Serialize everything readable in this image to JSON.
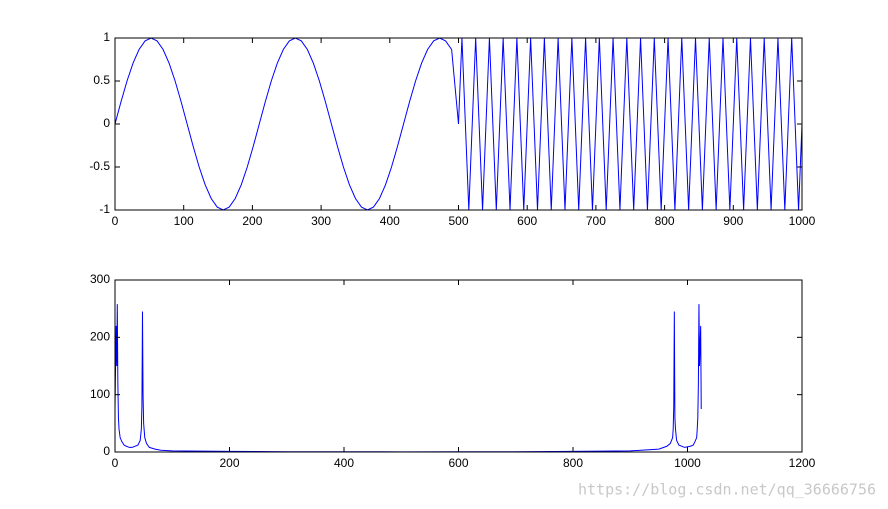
{
  "chart_data": [
    {
      "type": "line",
      "xlim": [
        0,
        1000
      ],
      "ylim": [
        -1,
        1
      ],
      "xticks": [
        0,
        100,
        200,
        300,
        400,
        500,
        600,
        700,
        800,
        900,
        1000
      ],
      "yticks": [
        -1,
        -0.5,
        0,
        0.5,
        1
      ],
      "x": [
        0,
        8.75,
        17.5,
        26.25,
        35,
        43.75,
        52.5,
        61.25,
        70,
        78.75,
        87.5,
        96.25,
        105,
        113.75,
        122.5,
        131.25,
        140,
        148.75,
        157.5,
        166.25,
        175,
        183.75,
        192.5,
        201.25,
        210,
        218.75,
        227.5,
        236.25,
        245,
        253.75,
        262.5,
        271.25,
        280,
        288.75,
        297.5,
        306.25,
        315,
        323.75,
        332.5,
        341.25,
        350,
        358.75,
        367.5,
        376.25,
        385,
        393.75,
        402.5,
        411.25,
        420,
        428.75,
        437.5,
        446.25,
        455,
        463.75,
        472.5,
        481.25,
        490,
        500,
        505,
        510,
        515,
        520,
        525,
        530,
        535,
        540,
        545,
        550,
        555,
        560,
        565,
        570,
        575,
        580,
        585,
        590,
        595,
        600,
        605,
        610,
        615,
        620,
        625,
        630,
        635,
        640,
        645,
        650,
        655,
        660,
        665,
        670,
        675,
        680,
        685,
        690,
        695,
        700,
        705,
        710,
        715,
        720,
        725,
        730,
        735,
        740,
        745,
        750,
        755,
        760,
        765,
        770,
        775,
        780,
        785,
        790,
        795,
        800,
        805,
        810,
        815,
        820,
        825,
        830,
        835,
        840,
        845,
        850,
        855,
        860,
        865,
        870,
        875,
        880,
        885,
        890,
        895,
        900,
        905,
        910,
        915,
        920,
        925,
        930,
        935,
        940,
        945,
        950,
        955,
        960,
        965,
        970,
        975,
        980,
        985,
        990,
        995,
        1000
      ],
      "series": [
        {
          "color": "#0000ff",
          "values": [
            0,
            0.259,
            0.5,
            0.707,
            0.866,
            0.966,
            1,
            0.966,
            0.866,
            0.707,
            0.5,
            0.259,
            0,
            -0.259,
            -0.5,
            -0.707,
            -0.866,
            -0.966,
            -1,
            -0.966,
            -0.866,
            -0.707,
            -0.5,
            -0.259,
            0,
            0.259,
            0.5,
            0.707,
            0.866,
            0.966,
            1,
            0.966,
            0.866,
            0.707,
            0.5,
            0.259,
            0,
            -0.259,
            -0.5,
            -0.707,
            -0.866,
            -0.966,
            -1,
            -0.966,
            -0.866,
            -0.707,
            -0.5,
            -0.259,
            0,
            0.259,
            0.5,
            0.707,
            0.866,
            0.966,
            1,
            0.966,
            0.866,
            0,
            1,
            0,
            -1,
            0,
            1,
            0,
            -1,
            0,
            1,
            0,
            -1,
            0,
            1,
            0,
            -1,
            0,
            1,
            0,
            -1,
            0,
            1,
            0,
            -1,
            0,
            1,
            0,
            -1,
            0,
            1,
            0,
            -1,
            0,
            1,
            0,
            -1,
            0,
            1,
            0,
            -1,
            0,
            1,
            0,
            -1,
            0,
            1,
            0,
            -1,
            0,
            1,
            0,
            -1,
            0,
            1,
            0,
            -1,
            0,
            1,
            0,
            -1,
            0,
            1,
            0,
            -1,
            0,
            1,
            0,
            -1,
            0,
            1,
            0,
            -1,
            0,
            1,
            0,
            -1,
            0,
            1,
            0,
            -1,
            0,
            1,
            0,
            -1,
            0,
            1,
            0,
            -1,
            0,
            1,
            0,
            -1,
            0,
            1,
            0,
            -1,
            0,
            1,
            0,
            -1,
            0
          ]
        }
      ]
    },
    {
      "type": "line",
      "xlim": [
        0,
        1200
      ],
      "ylim": [
        0,
        300
      ],
      "xticks": [
        0,
        200,
        400,
        600,
        800,
        1000,
        1200
      ],
      "yticks": [
        0,
        100,
        200,
        300
      ],
      "x": [
        0,
        2,
        3,
        4,
        5,
        6,
        7,
        9,
        12,
        16,
        20,
        25,
        30,
        40,
        44,
        46,
        47,
        48,
        49,
        50,
        52,
        55,
        60,
        70,
        80,
        100,
        150,
        200,
        300,
        400,
        500,
        600,
        700,
        800,
        900,
        950,
        964,
        970,
        974,
        975,
        976,
        977,
        978,
        979,
        981,
        985,
        995,
        1005,
        1010,
        1013,
        1016,
        1017,
        1018,
        1019,
        1020,
        1021,
        1023,
        1024
      ],
      "series": [
        {
          "color": "#0000ff",
          "values": [
            75,
            220,
            150,
            258,
            120,
            60,
            40,
            25,
            18,
            12,
            10,
            8,
            8,
            12,
            20,
            40,
            80,
            245,
            100,
            50,
            25,
            15,
            8,
            5,
            3,
            2,
            1.5,
            1,
            0.5,
            0.5,
            0.3,
            0.5,
            0.5,
            1,
            2,
            5,
            10,
            15,
            25,
            40,
            80,
            245,
            60,
            40,
            20,
            12,
            8,
            10,
            12,
            18,
            25,
            40,
            60,
            120,
            258,
            150,
            220,
            75
          ]
        }
      ]
    }
  ],
  "watermark": "https://blog.csdn.net/qq_36666756"
}
